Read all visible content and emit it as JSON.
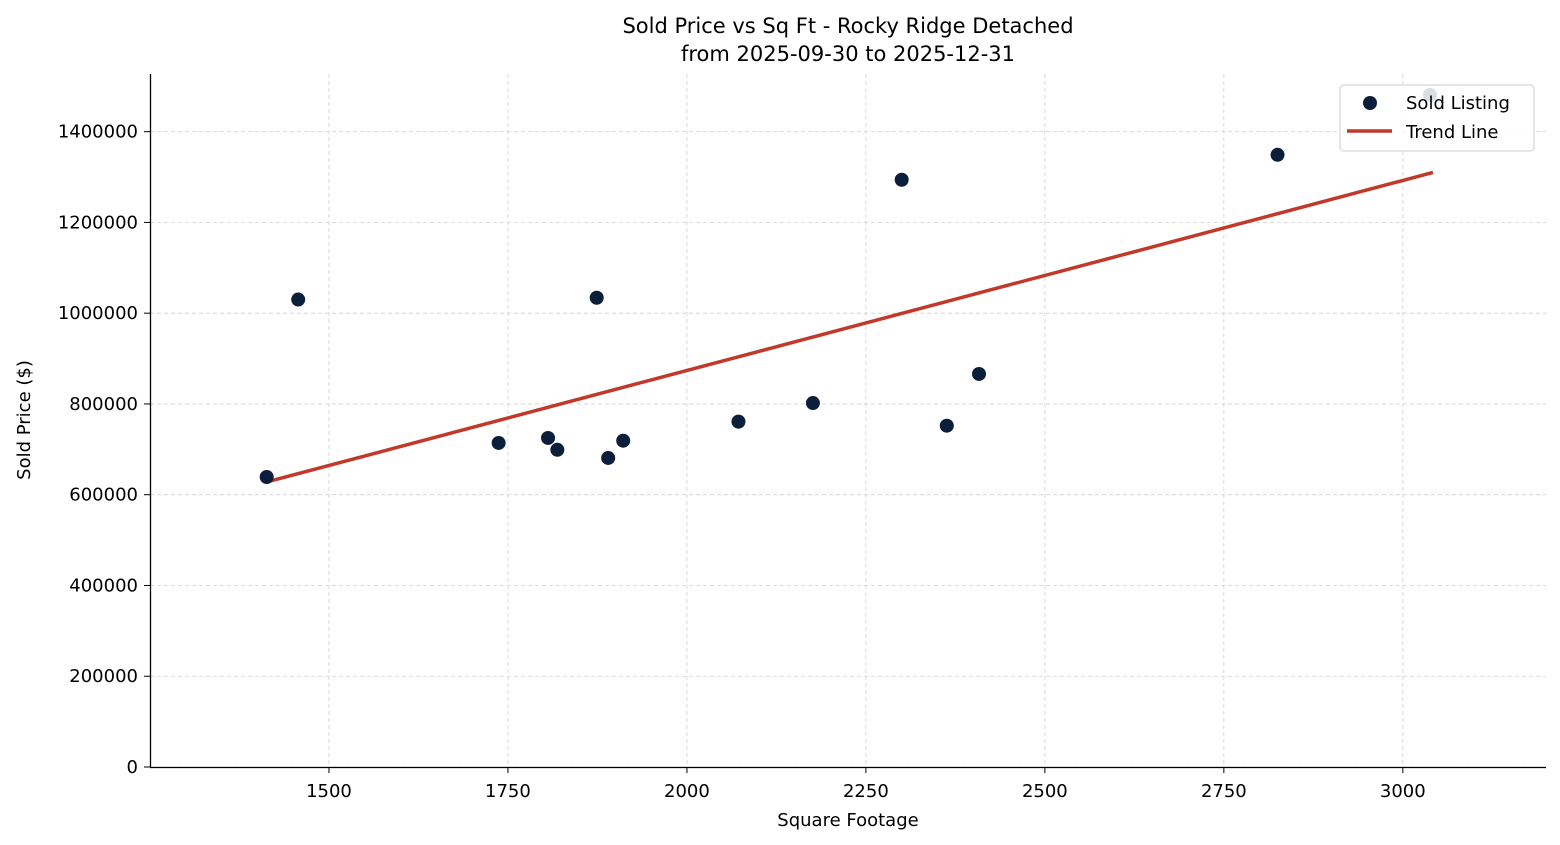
{
  "chart_data": {
    "type": "scatter",
    "title": "Sold Price vs Sq Ft - Rocky Ridge Detached",
    "subtitle": "from 2025-09-30 to 2025-12-31",
    "xlabel": "Square Footage",
    "ylabel": "Sold Price ($)",
    "xlim": [
      1250,
      3200
    ],
    "ylim": [
      0,
      1527000
    ],
    "xticks": [
      1500,
      1750,
      2000,
      2250,
      2500,
      2750,
      3000
    ],
    "yticks": [
      0,
      200000,
      400000,
      600000,
      800000,
      1000000,
      1200000,
      1400000
    ],
    "grid": true,
    "legend_position": "top-right",
    "series": [
      {
        "name": "Sold Listing",
        "type": "scatter",
        "color": "#0b1f3a",
        "points": [
          [
            1413,
            639000
          ],
          [
            1457,
            1030000
          ],
          [
            1737,
            714000
          ],
          [
            1806,
            725000
          ],
          [
            1819,
            699000
          ],
          [
            1874,
            1034000
          ],
          [
            1890,
            681000
          ],
          [
            1911,
            719000
          ],
          [
            2072,
            761000
          ],
          [
            2176,
            802000
          ],
          [
            2300,
            1294000
          ],
          [
            2363,
            752000
          ],
          [
            2408,
            866000
          ],
          [
            2825,
            1349000
          ],
          [
            3038,
            1481000
          ]
        ]
      },
      {
        "name": "Trend Line",
        "type": "line",
        "color": "#c0392b",
        "points": [
          [
            1413,
            628000
          ],
          [
            3042,
            1310000
          ]
        ]
      }
    ]
  }
}
